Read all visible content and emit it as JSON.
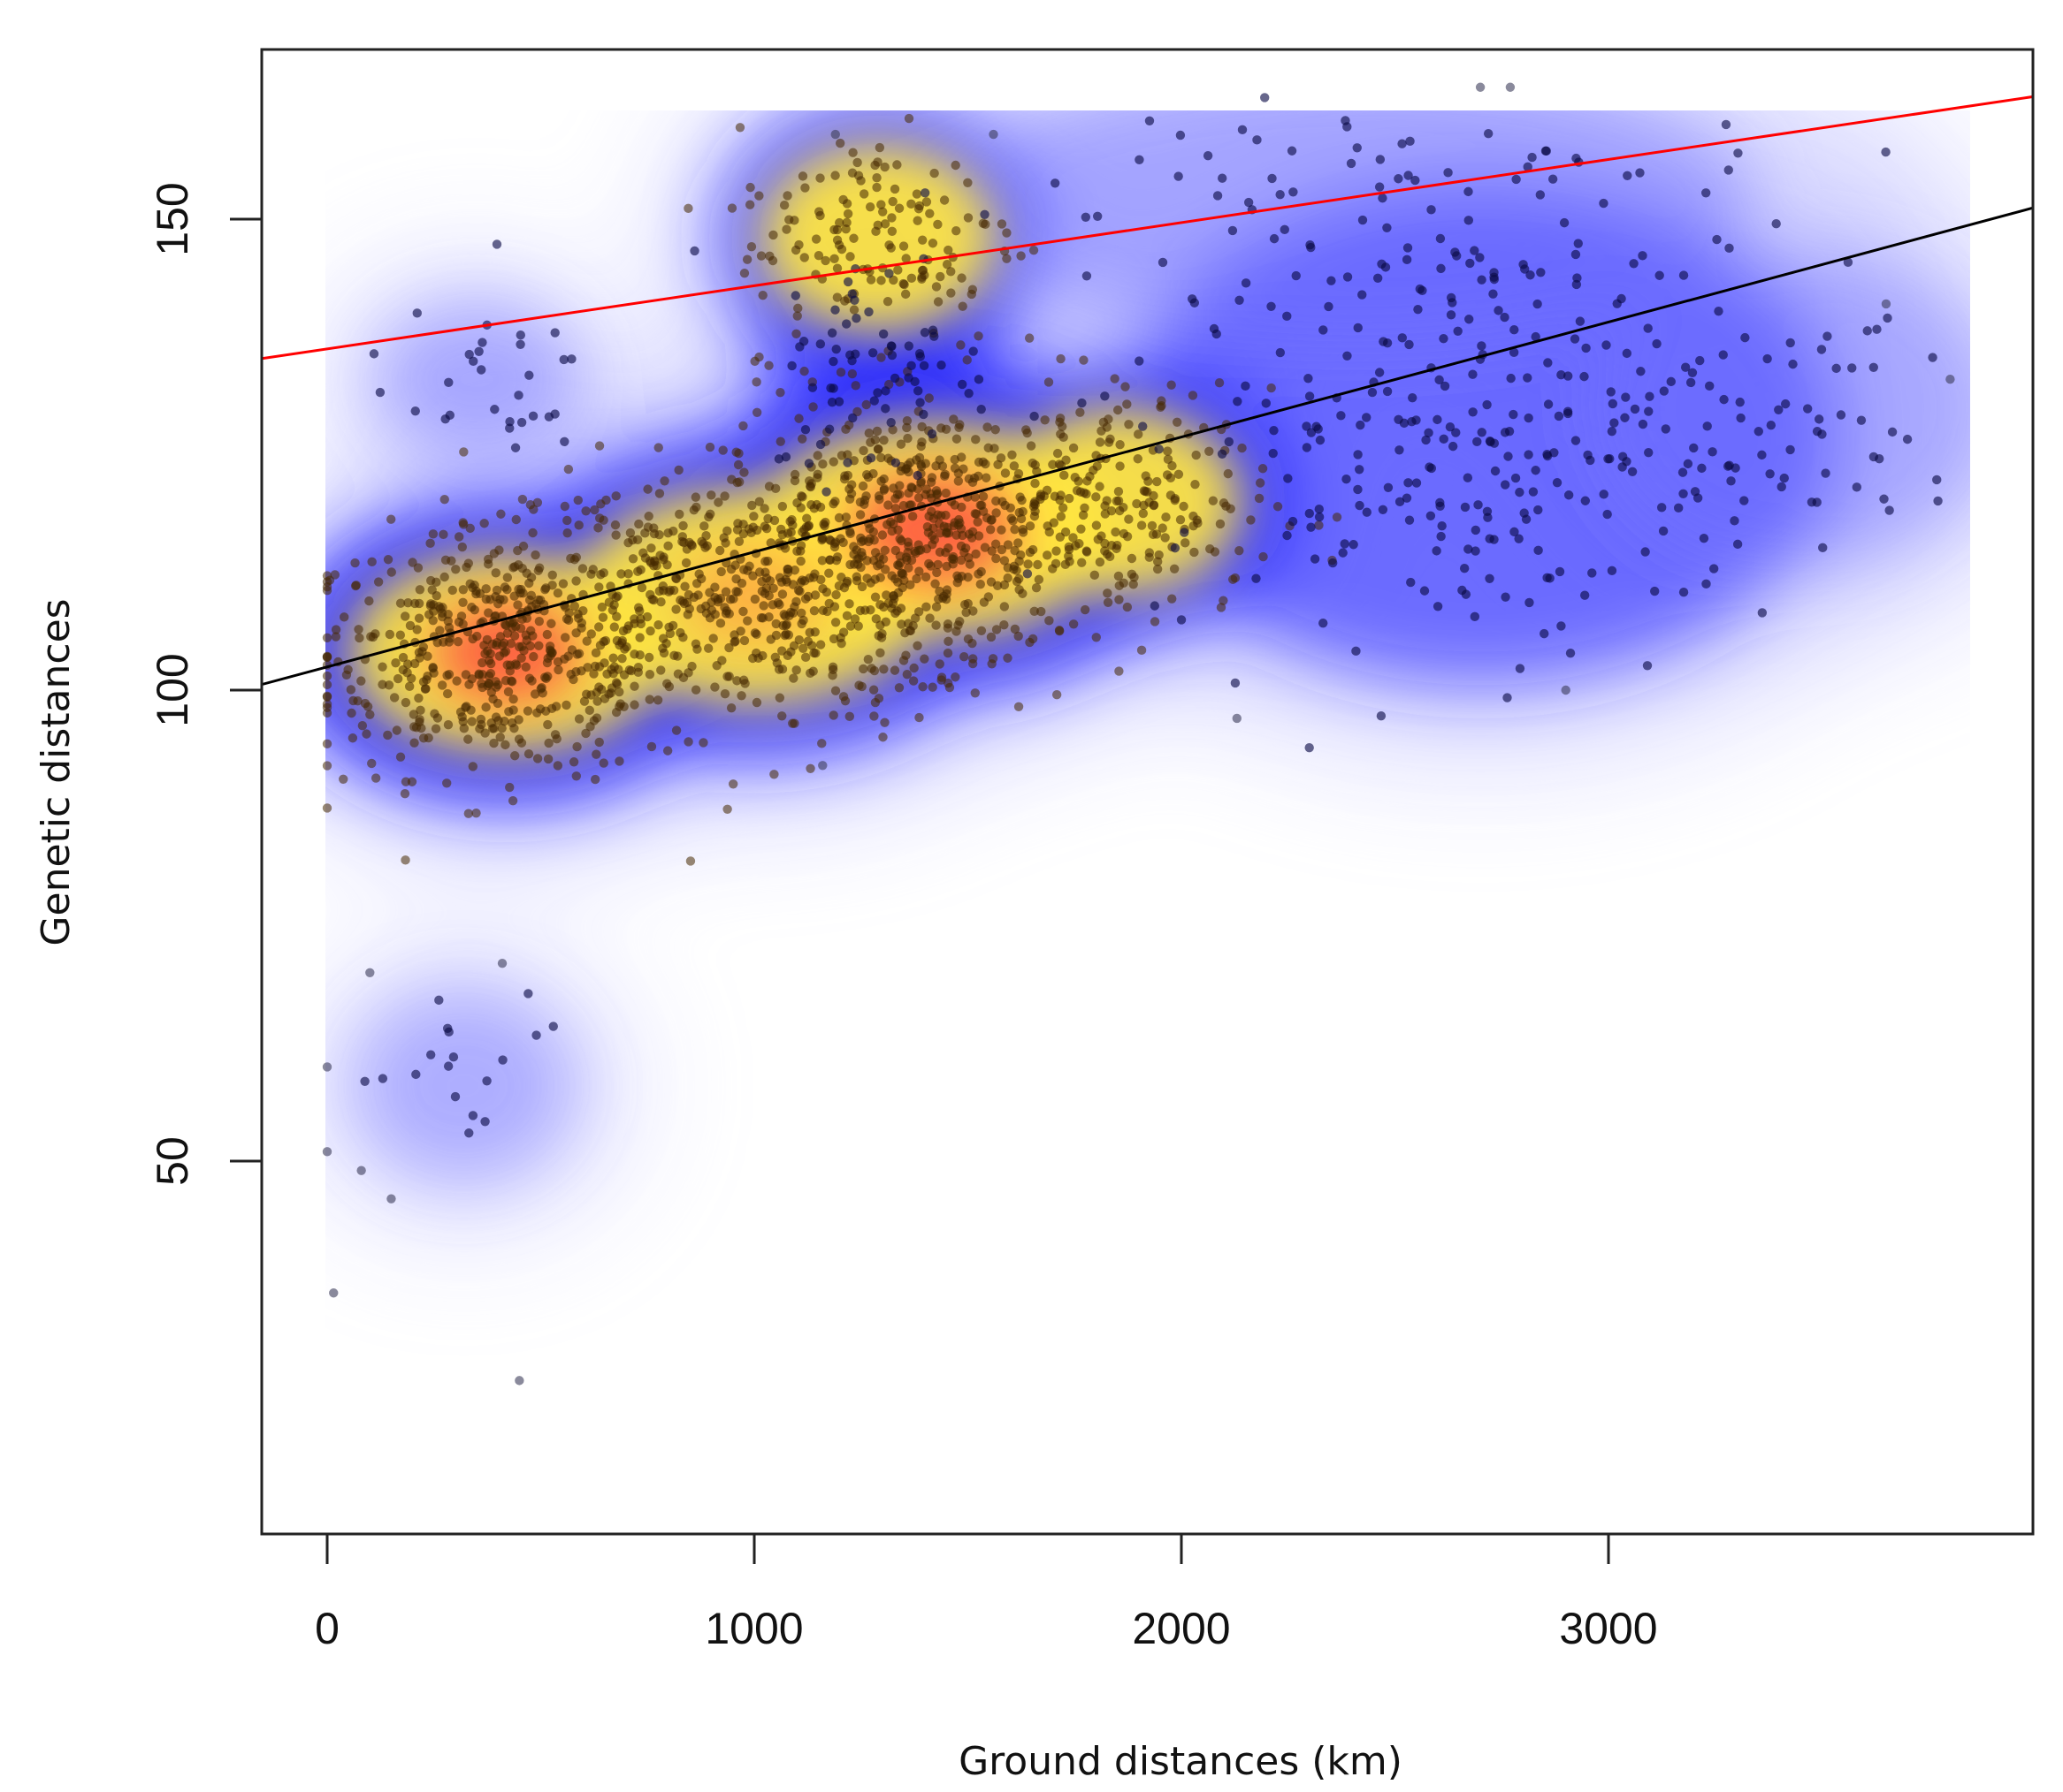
{
  "chart_data": {
    "type": "scatter",
    "subtype": "scatter with 2D kernel density heatmap and two regression lines",
    "title": "",
    "xlabel": "Ground distances (km)",
    "ylabel": "Genetic distances",
    "xlim": [
      -153,
      3994
    ],
    "ylim": [
      10.4,
      168
    ],
    "x_ticks": [
      0,
      1000,
      2000,
      3000
    ],
    "x_tick_labels": [
      "0",
      "1000",
      "2000",
      "3000"
    ],
    "y_ticks": [
      50,
      100,
      150
    ],
    "y_tick_labels": [
      "50",
      "100",
      "150"
    ],
    "grid": false,
    "legend": null,
    "density_colormap": [
      "#ffffff",
      "#2020ff",
      "#ffe640",
      "#ff3a2a"
    ],
    "density_extent": {
      "x": [
        0,
        3845
      ],
      "y": [
        26,
        161.5
      ]
    },
    "lines": [
      {
        "name": "regression-black",
        "color": "#000000",
        "x": [
          -153,
          3994
        ],
        "y": [
          100.6,
          151.2
        ]
      },
      {
        "name": "regression-red",
        "color": "#ff0000",
        "x": [
          -153,
          3994
        ],
        "y": [
          135.2,
          163.0
        ]
      }
    ],
    "clusters": [
      {
        "name": "main-low",
        "cx": 420,
        "cy": 104,
        "sx": 230,
        "sy": 6.5,
        "n": 520,
        "heat": 1.0
      },
      {
        "name": "main-mid",
        "cx": 1000,
        "cy": 110,
        "sx": 260,
        "sy": 7,
        "n": 420,
        "heat": 0.8
      },
      {
        "name": "main-high",
        "cx": 1420,
        "cy": 117,
        "sx": 260,
        "sy": 7,
        "n": 560,
        "heat": 1.0
      },
      {
        "name": "ridge",
        "cx": 1850,
        "cy": 120,
        "sx": 180,
        "sy": 6,
        "n": 140,
        "heat": 0.6
      },
      {
        "name": "upper-ring",
        "cx": 1290,
        "cy": 148,
        "sx": 170,
        "sy": 6,
        "n": 150,
        "heat": 0.55
      },
      {
        "name": "upper-stem",
        "cx": 1300,
        "cy": 134,
        "sx": 130,
        "sy": 6,
        "n": 70,
        "heat": 0.35
      },
      {
        "name": "right-cloud",
        "cx": 2700,
        "cy": 127,
        "sx": 380,
        "sy": 11,
        "n": 300,
        "heat": 0.35
      },
      {
        "name": "top-right-scatter",
        "cx": 2400,
        "cy": 152,
        "sx": 500,
        "sy": 7,
        "n": 80,
        "heat": 0.15
      },
      {
        "name": "far-right",
        "cx": 3450,
        "cy": 130,
        "sx": 250,
        "sy": 8,
        "n": 35,
        "heat": 0.1
      },
      {
        "name": "left-upper",
        "cx": 350,
        "cy": 133,
        "sx": 130,
        "sy": 4,
        "n": 30,
        "heat": 0.15
      },
      {
        "name": "low-left",
        "cx": 320,
        "cy": 58,
        "sx": 140,
        "sy": 5,
        "n": 18,
        "heat": 0.1
      }
    ],
    "outliers": [
      {
        "x": 450,
        "y": 26.7
      },
      {
        "x": 15,
        "y": 36
      },
      {
        "x": 0,
        "y": 51
      },
      {
        "x": 0,
        "y": 60
      },
      {
        "x": 80,
        "y": 49
      },
      {
        "x": 150,
        "y": 46
      },
      {
        "x": 100,
        "y": 70
      },
      {
        "x": 410,
        "y": 71
      },
      {
        "x": 3800,
        "y": 133
      },
      {
        "x": 3650,
        "y": 141
      },
      {
        "x": 2900,
        "y": 100
      },
      {
        "x": 2130,
        "y": 97
      },
      {
        "x": 1160,
        "y": 92
      },
      {
        "x": 1190,
        "y": 159
      },
      {
        "x": 1560,
        "y": 159
      },
      {
        "x": 2700,
        "y": 164
      },
      {
        "x": 2770,
        "y": 164
      }
    ],
    "n_points_approx": 2300
  },
  "axes": {
    "x_title": "Ground distances (km)",
    "y_title": "Genetic distances",
    "x_tick_labels": [
      "0",
      "1000",
      "2000",
      "3000"
    ],
    "y_tick_labels": [
      "50",
      "100",
      "150"
    ]
  }
}
